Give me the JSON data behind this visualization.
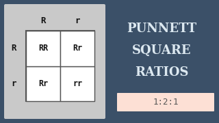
{
  "bg_color": "#3b5068",
  "left_panel_color": "#c9c9c9",
  "grid_bg_color": "#ffffff",
  "grid_border_color": "#555555",
  "title_lines": [
    "PUNNETT",
    "SQUARE",
    "RATIOS"
  ],
  "title_color": "#dce8f0",
  "ratio_text": "1:2:1",
  "ratio_box_color": "#fde0d5",
  "ratio_text_color": "#555555",
  "col_headers": [
    "R",
    "r"
  ],
  "row_headers": [
    "R",
    "r"
  ],
  "cells": [
    [
      "RR",
      "Rr"
    ],
    [
      "Rr",
      "rr"
    ]
  ],
  "header_color": "#111111",
  "cell_text_color": "#111111",
  "fig_width": 3.2,
  "fig_height": 1.8,
  "dpi": 100
}
